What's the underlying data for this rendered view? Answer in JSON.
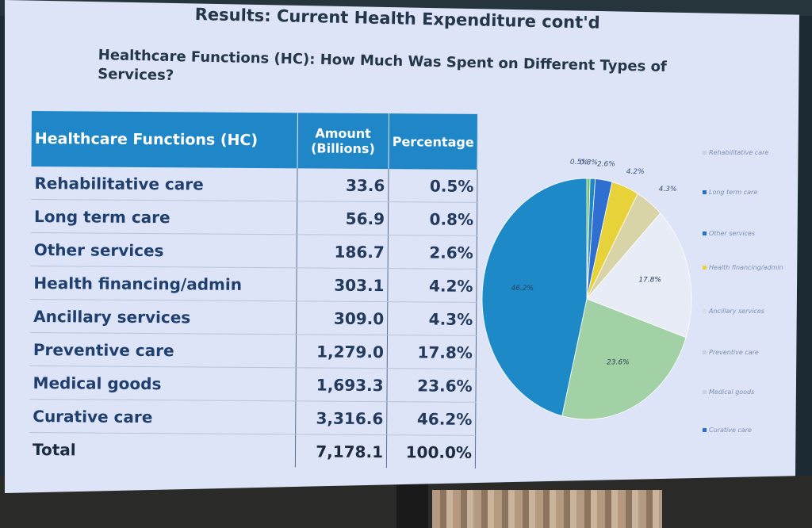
{
  "slide": {
    "title": "Results: Current Health Expenditure cont'd",
    "subtitle": "Healthcare Functions (HC): How Much Was Spent on Different Types of Services?"
  },
  "table": {
    "headers": [
      "Healthcare Functions (HC)",
      "Amount (Billions)",
      "Percentage"
    ],
    "rows": [
      {
        "name": "Rehabilitative care",
        "amount": "33.6",
        "pct": "0.5%"
      },
      {
        "name": "Long term care",
        "amount": "56.9",
        "pct": "0.8%"
      },
      {
        "name": "Other  services",
        "amount": "186.7",
        "pct": "2.6%"
      },
      {
        "name": "Health financing/admin",
        "amount": "303.1",
        "pct": "4.2%"
      },
      {
        "name": "Ancillary services",
        "amount": "309.0",
        "pct": "4.3%"
      },
      {
        "name": "Preventive care",
        "amount": "1,279.0",
        "pct": "17.8%"
      },
      {
        "name": "Medical goods",
        "amount": "1,693.3",
        "pct": "23.6%"
      },
      {
        "name": "Curative care",
        "amount": "3,316.6",
        "pct": "46.2%"
      }
    ],
    "total": {
      "name": "Total",
      "amount": "7,178.1",
      "pct": "100.0%"
    }
  },
  "chart_data": {
    "type": "pie",
    "categories": [
      "Rehabilitative care",
      "Long term care",
      "Other services",
      "Health financing/admin",
      "Ancillary services",
      "Preventive care",
      "Medical goods",
      "Curative care"
    ],
    "values": [
      0.5,
      0.8,
      2.6,
      4.2,
      4.3,
      17.8,
      23.6,
      46.2
    ],
    "labels": [
      "0.5%",
      "0.8%",
      "2.6%",
      "4.2%",
      "4.3%",
      "17.8%",
      "23.6%",
      "46.2%"
    ],
    "colors": [
      "#7bbf6a",
      "#1f86c8",
      "#2f6fd0",
      "#e8d23a",
      "#d9d4a8",
      "#e7ecf7",
      "#a3d1a6",
      "#1d8ac7"
    ],
    "legend_labels": [
      "Rehabilitative care",
      "Long term care",
      "Other services",
      "Health financing/admin",
      "Ancillary services",
      "Preventive care",
      "Medical goods",
      "Curative care"
    ],
    "legend_colors": [
      "#c9d2e3",
      "#2a6fc8",
      "#2a6fc8",
      "#e8d23a",
      "#d6dbe6",
      "#c9d2e3",
      "#c9d2e3",
      "#2a6fc8"
    ],
    "legend_placement": "right"
  }
}
